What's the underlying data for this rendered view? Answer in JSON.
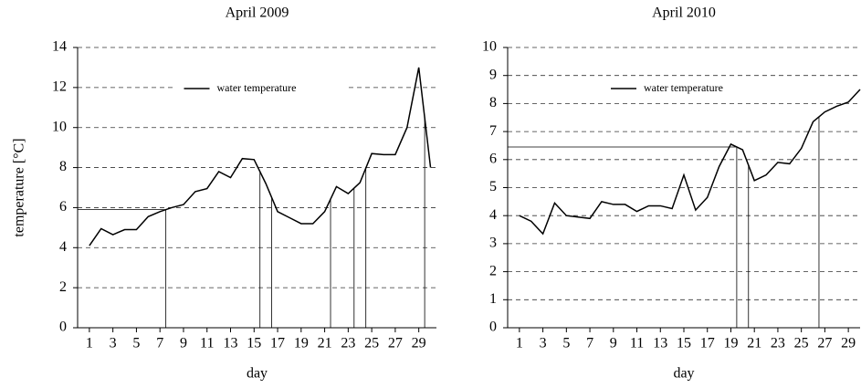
{
  "chart_data": [
    {
      "type": "line",
      "title": "April 2009",
      "xlabel": "day",
      "ylabel": "temperature [°C]",
      "x": [
        1,
        2,
        3,
        4,
        5,
        6,
        7,
        8,
        9,
        10,
        11,
        12,
        13,
        14,
        15,
        16,
        17,
        18,
        19,
        20,
        21,
        22,
        23,
        24,
        25,
        26,
        27,
        28,
        29,
        30
      ],
      "series": [
        {
          "name": "water temperature",
          "color": "#000000",
          "values": [
            4.1,
            4.95,
            4.65,
            4.9,
            4.9,
            5.55,
            5.8,
            6.0,
            6.15,
            6.8,
            6.95,
            7.8,
            7.5,
            8.45,
            8.4,
            7.2,
            5.8,
            5.5,
            5.2,
            5.2,
            5.8,
            7.05,
            6.7,
            7.25,
            8.7,
            8.65,
            8.65,
            10.0,
            13.0,
            8.0
          ]
        }
      ],
      "xlim": [
        0,
        30.5
      ],
      "xticks": [
        1,
        3,
        5,
        7,
        9,
        11,
        13,
        15,
        17,
        19,
        21,
        23,
        25,
        27,
        29
      ],
      "ylim": [
        0,
        14
      ],
      "yticks": [
        0,
        2,
        4,
        6,
        8,
        10,
        12,
        14
      ],
      "grid": true,
      "legend": "upper center",
      "vertical_lines": [
        7.5,
        15.5,
        16.5,
        21.5,
        23.5,
        24.5,
        29.5
      ],
      "horizontal_line": 5.9
    },
    {
      "type": "line",
      "title": "April 2010",
      "xlabel": "day",
      "x": [
        1,
        2,
        3,
        4,
        5,
        6,
        7,
        8,
        9,
        10,
        11,
        12,
        13,
        14,
        15,
        16,
        17,
        18,
        19,
        20,
        21,
        22,
        23,
        24,
        25,
        26,
        27,
        28,
        29,
        30
      ],
      "series": [
        {
          "name": "water temperature",
          "color": "#000000",
          "values": [
            4.0,
            3.8,
            3.35,
            4.45,
            4.0,
            3.95,
            3.9,
            4.5,
            4.4,
            4.4,
            4.15,
            4.35,
            4.35,
            4.25,
            5.45,
            4.2,
            4.65,
            5.75,
            6.55,
            6.35,
            5.25,
            5.45,
            5.9,
            5.85,
            6.4,
            7.35,
            7.7,
            7.9,
            8.05,
            8.5
          ]
        }
      ],
      "xlim": [
        0,
        30
      ],
      "xticks": [
        1,
        3,
        5,
        7,
        9,
        11,
        13,
        15,
        17,
        19,
        21,
        23,
        25,
        27,
        29
      ],
      "ylim": [
        0,
        10
      ],
      "yticks": [
        0,
        1,
        2,
        3,
        4,
        5,
        6,
        7,
        8,
        9,
        10
      ],
      "grid": true,
      "legend": "upper center",
      "vertical_lines": [
        19.5,
        20.5,
        26.5
      ],
      "horizontal_line": 6.45
    }
  ]
}
